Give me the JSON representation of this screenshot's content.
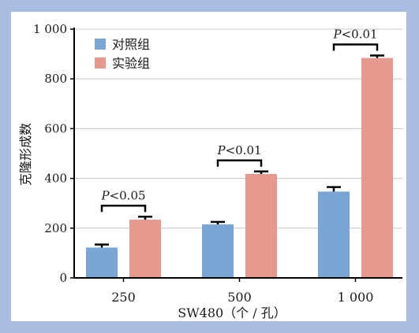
{
  "chart_data": {
    "type": "bar",
    "categories": [
      "250",
      "500",
      "1 000"
    ],
    "series": [
      {
        "name": "对照组",
        "color": "#7aa6d6",
        "values": [
          122,
          215,
          347
        ],
        "errors": [
          12,
          10,
          18
        ]
      },
      {
        "name": "实验组",
        "color": "#e8998d",
        "values": [
          234,
          418,
          884
        ],
        "errors": [
          12,
          10,
          10
        ]
      }
    ],
    "xlabel": "SW480（个 / 孔）",
    "ylabel": "克隆形成数",
    "ylim": [
      0,
      1000
    ],
    "yticks": [
      {
        "value": 0,
        "label": "0"
      },
      {
        "value": 200,
        "label": "200"
      },
      {
        "value": 400,
        "label": "400"
      },
      {
        "value": 600,
        "label": "600"
      },
      {
        "value": 800,
        "label": "800"
      },
      {
        "value": 1000,
        "label": "1 000"
      }
    ],
    "grid": true,
    "legend_position": "top-left",
    "annotations": [
      {
        "category": "250",
        "p_symbol": "P",
        "p_value": "<0.05"
      },
      {
        "category": "500",
        "p_symbol": "P",
        "p_value": "<0.01"
      },
      {
        "category": "1 000",
        "p_symbol": "P",
        "p_value": "<0.01"
      }
    ],
    "colors": {
      "background": "#a9bde2",
      "plot_background": "#ffffff",
      "grid": "#c8c8c8",
      "axis": "#000000"
    }
  }
}
